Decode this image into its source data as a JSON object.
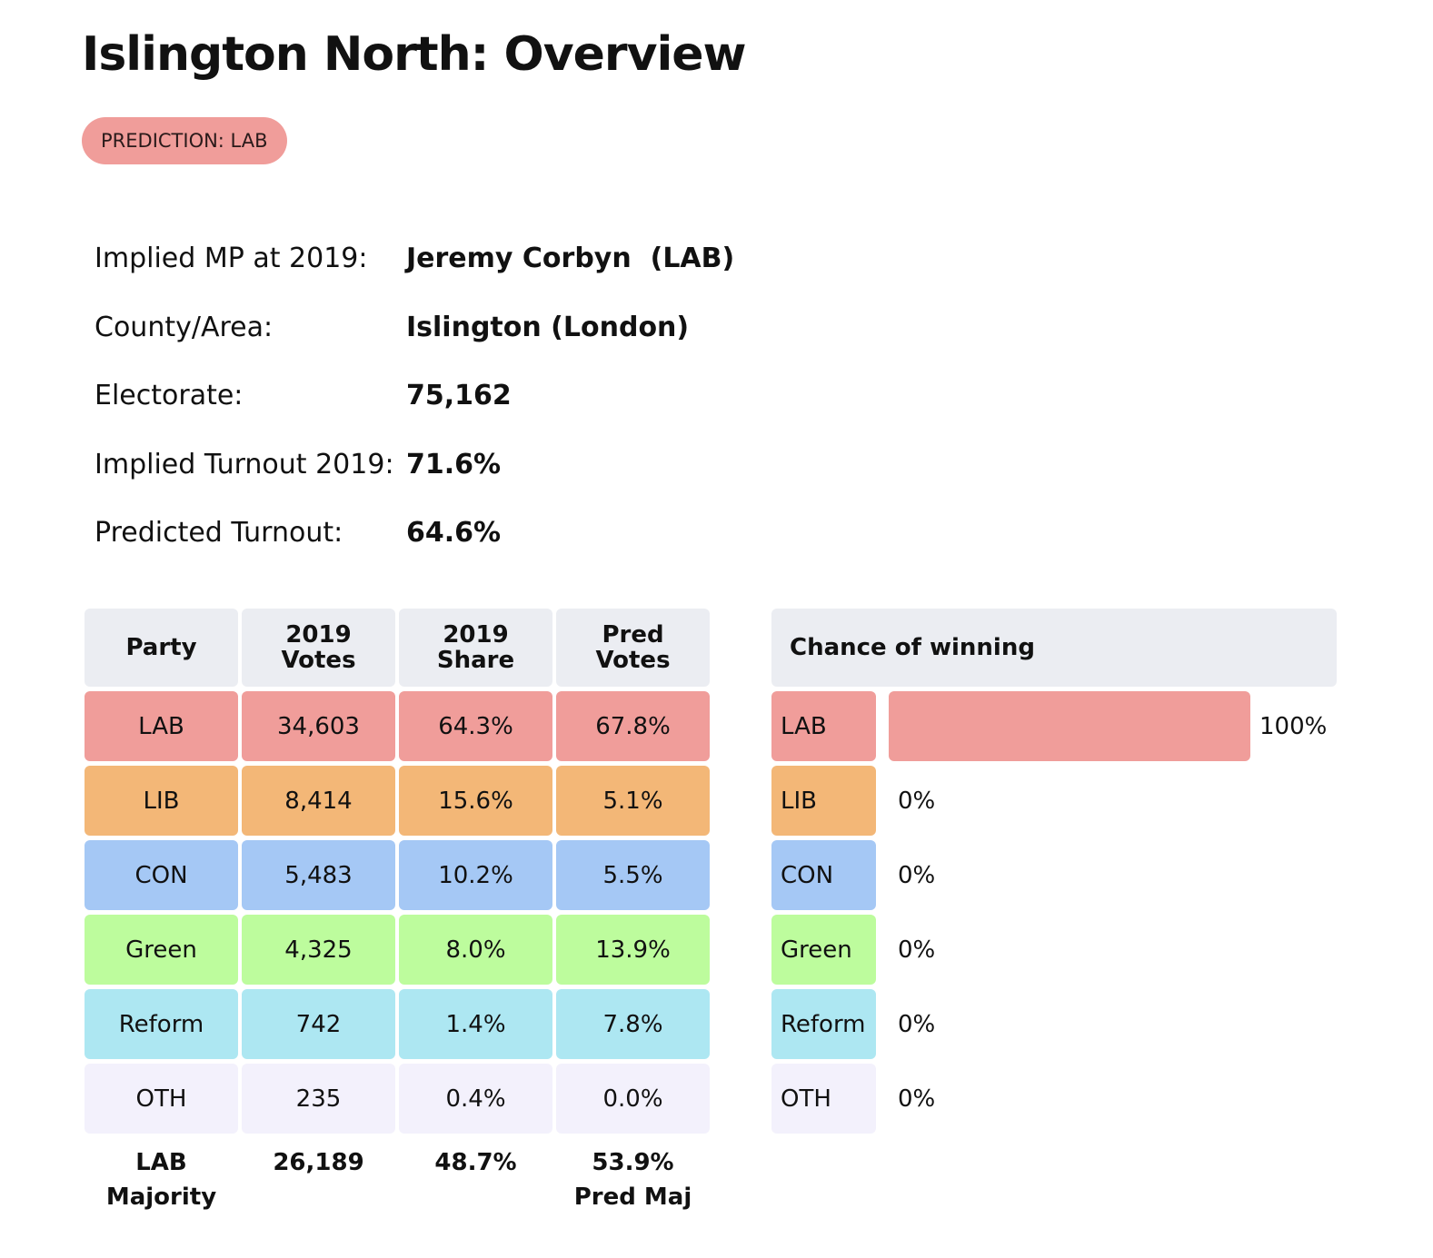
{
  "title": "Islington North: Overview",
  "prediction_badge": "PREDICTION: LAB",
  "info": [
    {
      "label": "Implied MP at 2019:",
      "value": "Jeremy Corbyn  (LAB)"
    },
    {
      "label": "County/Area:",
      "value": "Islington (London)"
    },
    {
      "label": "Electorate:",
      "value": "75,162"
    },
    {
      "label": "Implied Turnout 2019:",
      "value": "71.6%"
    },
    {
      "label": "Predicted Turnout:",
      "value": "64.6%"
    }
  ],
  "results_table": {
    "headers": [
      {
        "line1": "Party",
        "line2": ""
      },
      {
        "line1": "2019",
        "line2": "Votes"
      },
      {
        "line1": "2019",
        "line2": "Share"
      },
      {
        "line1": "Pred",
        "line2": "Votes"
      }
    ],
    "rows": [
      {
        "party": "LAB",
        "votes_2019": "34,603",
        "share_2019": "64.3%",
        "pred_votes": "67.8%",
        "color": "#f09d9a"
      },
      {
        "party": "LIB",
        "votes_2019": "8,414",
        "share_2019": "15.6%",
        "pred_votes": "5.1%",
        "color": "#f3b777"
      },
      {
        "party": "CON",
        "votes_2019": "5,483",
        "share_2019": "10.2%",
        "pred_votes": "5.5%",
        "color": "#a5c8f5"
      },
      {
        "party": "Green",
        "votes_2019": "4,325",
        "share_2019": "8.0%",
        "pred_votes": "13.9%",
        "color": "#bdfc9d"
      },
      {
        "party": "Reform",
        "votes_2019": "742",
        "share_2019": "1.4%",
        "pred_votes": "7.8%",
        "color": "#ade7f2"
      },
      {
        "party": "OTH",
        "votes_2019": "235",
        "share_2019": "0.4%",
        "pred_votes": "0.0%",
        "color": "#f3f1fc"
      }
    ],
    "footer": {
      "label_line1": "LAB",
      "label_line2": "Majority",
      "majority_votes": "26,189",
      "majority_share": "48.7%",
      "pred_majority": "53.9%",
      "pred_majority_label": "Pred Maj"
    }
  },
  "chance_of_winning": {
    "header": "Chance of winning",
    "rows": [
      {
        "party": "LAB",
        "value": 100,
        "label": "100%",
        "color": "#f09d9a"
      },
      {
        "party": "LIB",
        "value": 0,
        "label": "0%",
        "color": "#f3b777"
      },
      {
        "party": "CON",
        "value": 0,
        "label": "0%",
        "color": "#a5c8f5"
      },
      {
        "party": "Green",
        "value": 0,
        "label": "0%",
        "color": "#bdfc9d"
      },
      {
        "party": "Reform",
        "value": 0,
        "label": "0%",
        "color": "#ade7f2"
      },
      {
        "party": "OTH",
        "value": 0,
        "label": "0%",
        "color": "#f3f1fc"
      }
    ]
  }
}
